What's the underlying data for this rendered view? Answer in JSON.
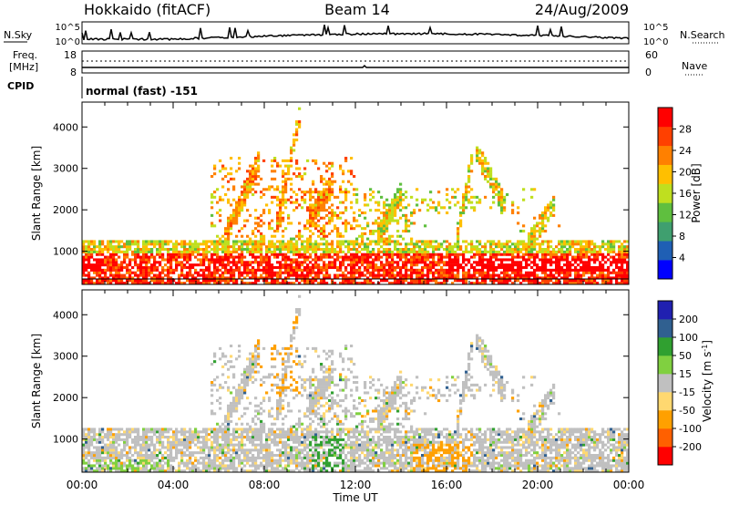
{
  "header": {
    "title": "Hokkaido (fitACF)",
    "beam": "Beam 14",
    "date": "24/Aug/2009"
  },
  "aux_panels": {
    "nsky_label": "N.Sky",
    "nsearch_label": "N.Search",
    "freq_label_line1": "Freq.",
    "freq_label_line2": "[MHz]",
    "nave_label": "Nave",
    "cpid_label": "CPID",
    "cpid_text": "normal (fast) -151",
    "noise_ticks": [
      "10^5",
      "10^0"
    ],
    "freq_ticks": [
      "18",
      "8"
    ],
    "nave_ticks": [
      "60",
      "0"
    ]
  },
  "colors": {
    "power": [
      "#0000ff",
      "#1f5fb4",
      "#3f9f6f",
      "#5fbf3f",
      "#bfdf1f",
      "#ffbf00",
      "#ff8000",
      "#ff4000",
      "#ff0000"
    ],
    "velocity": [
      "#ff0000",
      "#ff6000",
      "#ffa000",
      "#ffd870",
      "#c0c0c0",
      "#80d040",
      "#30a030",
      "#306090",
      "#2020b0"
    ]
  },
  "chart_data": [
    {
      "type": "heatmap",
      "xlabel": "",
      "ylabel": "Slant Range [km]",
      "x_ticks": [
        "00:00",
        "04:00",
        "08:00",
        "12:00",
        "16:00",
        "20:00",
        "00:00"
      ],
      "y_ticks": [
        1000,
        2000,
        3000,
        4000
      ],
      "ylim": [
        200,
        4600
      ],
      "xlim_hours": [
        0,
        24
      ],
      "colorbar": {
        "label": "Power [dB]",
        "ticks": [
          4,
          8,
          12,
          16,
          20,
          24,
          28
        ],
        "range": [
          0,
          32
        ]
      }
    },
    {
      "type": "heatmap",
      "xlabel": "Time UT",
      "ylabel": "Slant Range [km]",
      "x_ticks": [
        "00:00",
        "04:00",
        "08:00",
        "12:00",
        "16:00",
        "20:00",
        "00:00"
      ],
      "y_ticks": [
        1000,
        2000,
        3000,
        4000
      ],
      "ylim": [
        200,
        4600
      ],
      "xlim_hours": [
        0,
        24
      ],
      "colorbar": {
        "label": "Velocity [m s^-1]",
        "ticks": [
          -200,
          -100,
          -50,
          -15,
          15,
          50,
          100,
          200
        ]
      }
    }
  ]
}
